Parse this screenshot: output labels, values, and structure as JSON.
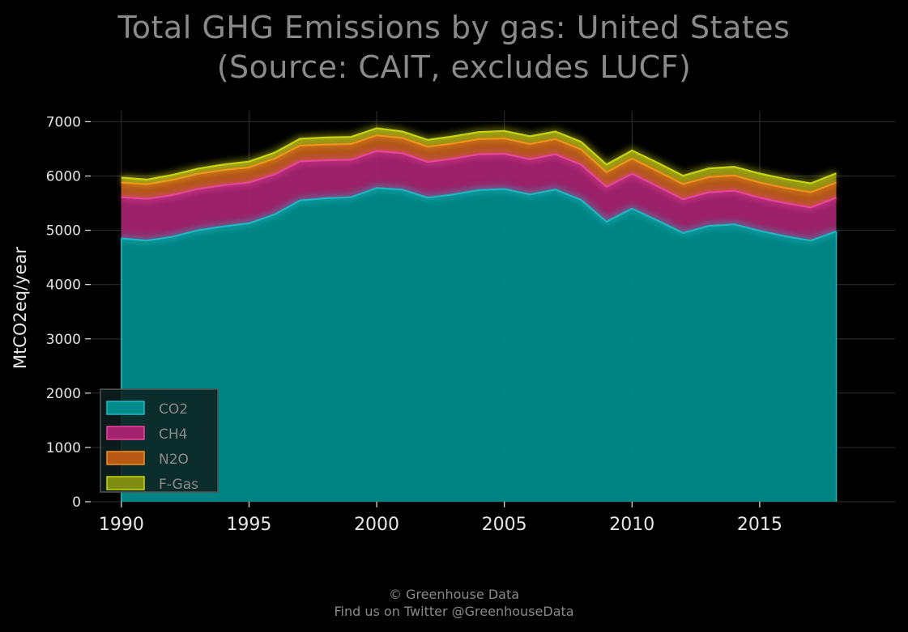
{
  "title_line1": "Total GHG Emissions by gas: United States",
  "title_line2": "(Source: CAIT, excludes LUCF)",
  "credit_line1": "© Greenhouse Data",
  "credit_line2": "Find us on Twitter @GreenhouseData",
  "colors": {
    "CO2": "#008b8a",
    "CH4": "#a3236e",
    "N2O": "#b85a16",
    "F-Gas": "#7e8c10"
  },
  "line_colors": {
    "CO2": "#1fb6c2",
    "CH4": "#e8459a",
    "N2O": "#f0901e",
    "F-Gas": "#c9d411"
  },
  "chart_data": {
    "type": "area",
    "stacked": true,
    "title": "Total GHG Emissions by gas: United States (Source: CAIT, excludes LUCF)",
    "xlabel": "",
    "ylabel": "MtCO2eq/year",
    "xlim": [
      1988.8,
      2020.3
    ],
    "ylim": [
      0,
      7200
    ],
    "xticks": [
      1990,
      1995,
      2000,
      2005,
      2010,
      2015
    ],
    "yticks": [
      0,
      1000,
      2000,
      3000,
      4000,
      5000,
      6000,
      7000
    ],
    "grid": true,
    "legend_position": "lower-left",
    "x": [
      1990,
      1991,
      1992,
      1993,
      1994,
      1995,
      1996,
      1997,
      1998,
      1999,
      2000,
      2001,
      2002,
      2003,
      2004,
      2005,
      2006,
      2007,
      2008,
      2009,
      2010,
      2011,
      2012,
      2013,
      2014,
      2015,
      2016,
      2017,
      2018
    ],
    "series": [
      {
        "name": "CO2",
        "values": [
          4850,
          4810,
          4880,
          5000,
          5070,
          5130,
          5290,
          5550,
          5590,
          5610,
          5780,
          5750,
          5600,
          5660,
          5740,
          5760,
          5660,
          5750,
          5560,
          5160,
          5400,
          5180,
          4950,
          5080,
          5110,
          4990,
          4890,
          4810,
          4980
        ]
      },
      {
        "name": "CH4",
        "values": [
          760,
          770,
          770,
          760,
          760,
          750,
          740,
          720,
          700,
          690,
          680,
          670,
          660,
          660,
          660,
          650,
          650,
          650,
          650,
          640,
          640,
          630,
          620,
          620,
          620,
          610,
          610,
          610,
          620
        ]
      },
      {
        "name": "N2O",
        "values": [
          270,
          270,
          280,
          280,
          280,
          280,
          290,
          290,
          290,
          290,
          290,
          280,
          280,
          280,
          280,
          280,
          280,
          280,
          280,
          270,
          280,
          280,
          280,
          280,
          280,
          280,
          280,
          280,
          280
        ]
      },
      {
        "name": "F-Gas",
        "values": [
          90,
          85,
          90,
          95,
          100,
          105,
          110,
          125,
          130,
          130,
          130,
          120,
          125,
          130,
          130,
          140,
          140,
          140,
          140,
          140,
          150,
          155,
          155,
          160,
          160,
          165,
          165,
          165,
          170
        ]
      }
    ]
  }
}
